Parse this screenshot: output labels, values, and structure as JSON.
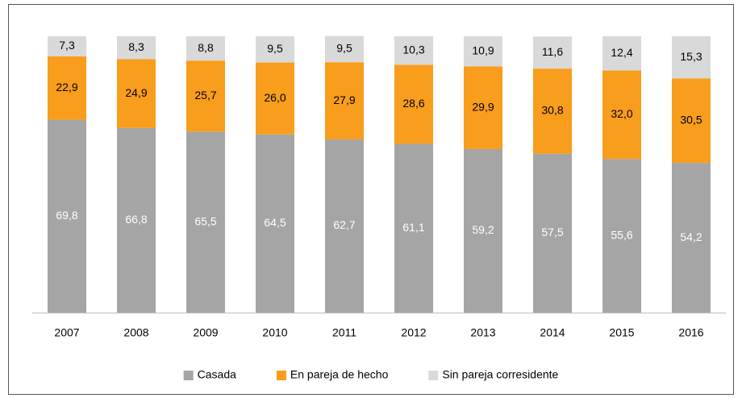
{
  "chart_data": {
    "type": "stacked_bar",
    "categories": [
      "2007",
      "2008",
      "2009",
      "2010",
      "2011",
      "2012",
      "2013",
      "2014",
      "2015",
      "2016"
    ],
    "series": [
      {
        "name": "Casada",
        "color": "#a5a5a5",
        "values": [
          69.8,
          66.8,
          65.5,
          64.5,
          62.7,
          61.1,
          59.2,
          57.5,
          55.6,
          54.2
        ],
        "value_labels": [
          "69,8",
          "66,8",
          "65,5",
          "64,5",
          "62,7",
          "61,1",
          "59,2",
          "57,5",
          "55,6",
          "54,2"
        ]
      },
      {
        "name": "En pareja de hecho",
        "color": "#f99d1c",
        "values": [
          22.9,
          24.9,
          25.7,
          26.0,
          27.9,
          28.6,
          29.9,
          30.8,
          32.0,
          30.5
        ],
        "value_labels": [
          "22,9",
          "24,9",
          "25,7",
          "26,0",
          "27,9",
          "28,6",
          "29,9",
          "30,8",
          "32,0",
          "30,5"
        ]
      },
      {
        "name": "Sin pareja corresidente",
        "color": "#d9d9d9",
        "values": [
          7.3,
          8.3,
          8.8,
          9.5,
          9.5,
          10.3,
          10.9,
          11.6,
          12.4,
          15.3
        ],
        "value_labels": [
          "7,3",
          "8,3",
          "8,8",
          "9,5",
          "9,5",
          "10,3",
          "10,9",
          "11,6",
          "12,4",
          "15,3"
        ]
      }
    ],
    "ylim": [
      0,
      100
    ],
    "legend": "bottom"
  }
}
